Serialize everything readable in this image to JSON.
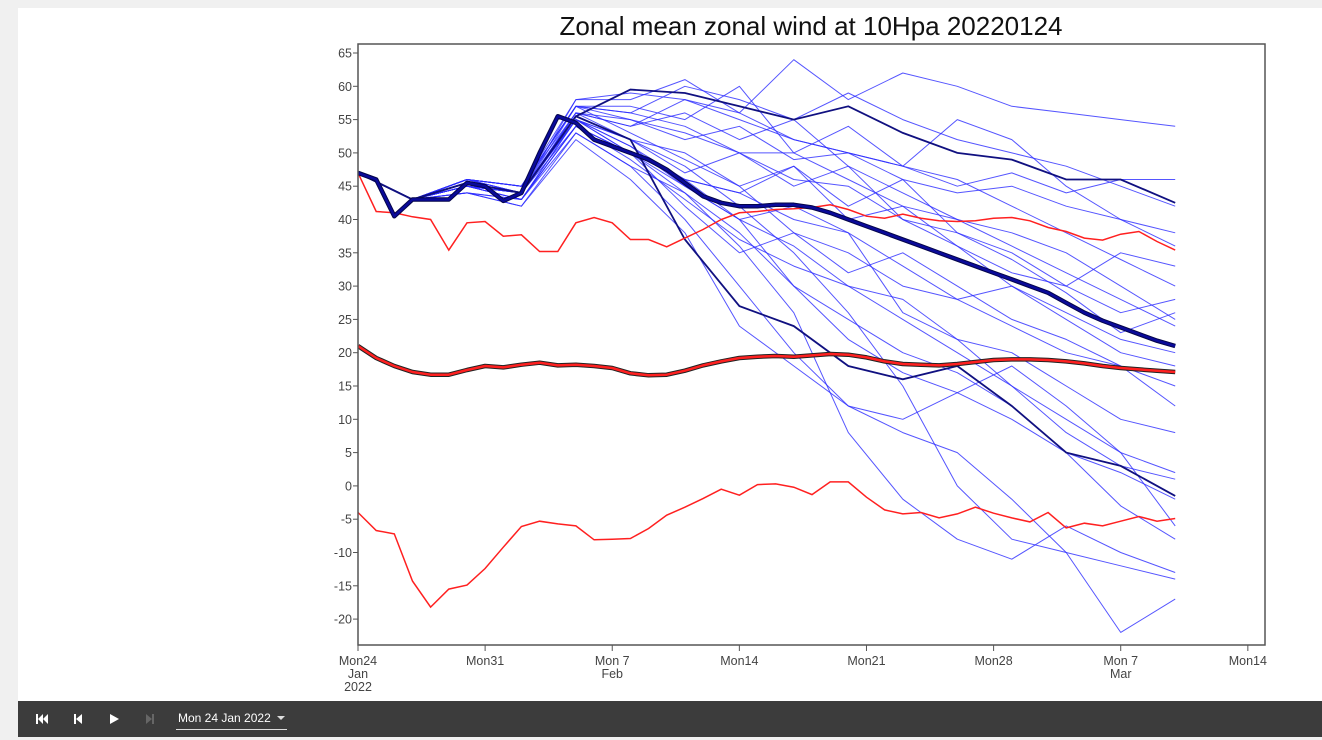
{
  "toolbar": {
    "buttons": [
      {
        "name": "first-frame",
        "icon": "skip-to-start-icon",
        "enabled": true
      },
      {
        "name": "previous-frame",
        "icon": "step-back-icon",
        "enabled": true
      },
      {
        "name": "play",
        "icon": "play-icon",
        "enabled": true
      },
      {
        "name": "next-frame",
        "icon": "step-forward-icon",
        "enabled": false
      }
    ],
    "date_value": "Mon 24 Jan 2022"
  },
  "chart_data": {
    "type": "line",
    "title": "Zonal mean zonal wind at 10Hpa 20220124",
    "xlabel": "",
    "ylabel": "",
    "x_unit": "days since Mon 24 Jan 2022",
    "xlim": [
      0,
      50
    ],
    "ylim": [
      -24,
      66.3
    ],
    "y_ticks": [
      65,
      60,
      55,
      50,
      45,
      40,
      35,
      30,
      25,
      20,
      15,
      10,
      5,
      0,
      -5,
      -10,
      -15,
      -20
    ],
    "x_ticks": [
      {
        "day": 0,
        "lines": [
          "Mon24",
          "Jan",
          "2022"
        ]
      },
      {
        "day": 7,
        "lines": [
          "Mon31"
        ]
      },
      {
        "day": 14,
        "lines": [
          "Mon 7",
          "Feb"
        ]
      },
      {
        "day": 21,
        "lines": [
          "Mon14"
        ]
      },
      {
        "day": 28,
        "lines": [
          "Mon21"
        ]
      },
      {
        "day": 35,
        "lines": [
          "Mon28"
        ]
      },
      {
        "day": 42,
        "lines": [
          "Mon 7",
          "Mar"
        ]
      },
      {
        "day": 49,
        "lines": [
          "Mon14"
        ]
      }
    ],
    "colors": {
      "member": "#2a2aff",
      "ens_mean": "#0a0a9a",
      "control": "#101080",
      "clim": "#ff2020",
      "clim_mean_edge": "#222222"
    },
    "climatology": {
      "days": "0..45 daily",
      "max": [
        47,
        41.2,
        41,
        40.4,
        40,
        35.4,
        39.5,
        39.7,
        37.5,
        37.7,
        35.2,
        35.2,
        39.5,
        40.3,
        39.5,
        37,
        37,
        35.9,
        37.2,
        38.5,
        40,
        41,
        41.2,
        41.5,
        41.6,
        41.8,
        42.2,
        41.5,
        40.5,
        40.2,
        40.8,
        40.2,
        39.8,
        39.7,
        39.8,
        40.2,
        40.3,
        39.8,
        38.8,
        38.2,
        37.2,
        36.9,
        37.8,
        38.2,
        36.7,
        35.4
      ],
      "mean": [
        21,
        19.2,
        18,
        17.1,
        16.7,
        16.7,
        17.4,
        18,
        17.8,
        18.2,
        18.5,
        18.1,
        18.2,
        18,
        17.7,
        16.9,
        16.6,
        16.7,
        17.3,
        18.1,
        18.7,
        19.2,
        19.4,
        19.5,
        19.4,
        19.6,
        19.8,
        19.7,
        19.3,
        18.7,
        18.3,
        18.2,
        18.1,
        18.3,
        18.6,
        18.9,
        19,
        19,
        18.9,
        18.7,
        18.4,
        18,
        17.7,
        17.5,
        17.3,
        17.1
      ],
      "min": [
        -4,
        -6.7,
        -7.2,
        -14.3,
        -18.2,
        -15.5,
        -14.9,
        -12.4,
        -9.2,
        -6.1,
        -5.3,
        -5.7,
        -6,
        -8.1,
        -8,
        -7.9,
        -6.4,
        -4.4,
        -3.2,
        -1.9,
        -0.5,
        -1.4,
        0.2,
        0.3,
        -0.2,
        -1.3,
        0.6,
        0.6,
        -1.7,
        -3.6,
        -4.2,
        -4,
        -4.8,
        -4.2,
        -3.2,
        -4.1,
        -4.8,
        -5.4,
        -4,
        -6.3,
        -5.6,
        -6,
        -5.3,
        -4.6,
        -5.3,
        -4.9
      ]
    },
    "ensemble_mean": [
      47,
      46,
      40.5,
      43,
      43,
      43,
      45.5,
      45,
      42.8,
      44,
      50,
      55.5,
      54.5,
      52,
      51,
      50,
      49,
      47.5,
      45.5,
      43.5,
      42.5,
      42,
      42,
      42.2,
      42.2,
      41.8,
      41,
      40,
      39,
      38,
      37,
      36,
      35,
      34,
      33,
      32,
      31,
      30,
      29,
      27.5,
      26,
      24.8,
      23.8,
      22.8,
      21.8,
      21
    ],
    "member_days": [
      0,
      3,
      6,
      9,
      12,
      15,
      18,
      21,
      24,
      27,
      30,
      33,
      36,
      39,
      42,
      45
    ],
    "control_runs": [
      [
        47,
        43,
        45.5,
        44,
        55.5,
        59.5,
        59,
        57,
        55,
        57,
        53,
        50,
        49,
        46,
        46,
        42.5
      ],
      [
        47,
        43,
        45.5,
        44,
        55.5,
        52,
        37,
        27,
        24,
        18,
        16,
        18,
        12,
        5,
        3,
        -1.5
      ]
    ],
    "members": [
      [
        47,
        43,
        46,
        45,
        57,
        56,
        60,
        58,
        55,
        59,
        55,
        52,
        50,
        48,
        45,
        42
      ],
      [
        47,
        43,
        46,
        44,
        58,
        58,
        61,
        56,
        64,
        58,
        62,
        60,
        57,
        56,
        55,
        54
      ],
      [
        47,
        43,
        45,
        44,
        54,
        50,
        44,
        38,
        30,
        25,
        20,
        17,
        12,
        5,
        2,
        -2
      ],
      [
        47,
        43,
        44,
        43,
        53,
        48,
        40,
        30,
        20,
        12,
        8,
        5,
        -2,
        -10,
        -22,
        -17
      ],
      [
        47,
        43,
        46,
        45,
        57,
        55,
        52,
        54,
        49,
        50,
        46,
        44,
        45,
        42,
        40,
        38
      ],
      [
        47,
        43,
        45,
        43,
        55,
        50,
        46,
        44,
        40,
        38,
        26,
        22,
        15,
        8,
        3,
        1
      ],
      [
        47,
        43,
        45,
        44,
        56,
        52,
        50,
        45,
        48,
        42,
        46,
        38,
        35,
        30,
        26,
        28
      ],
      [
        47,
        43,
        46,
        44,
        57,
        56,
        54,
        50,
        46,
        45,
        40,
        36,
        32,
        30,
        35,
        33
      ],
      [
        47,
        43,
        44,
        42,
        52,
        46,
        38,
        24,
        18,
        12,
        10,
        14,
        18,
        12,
        5,
        -6
      ],
      [
        47,
        43,
        46,
        45,
        58,
        59,
        58,
        55,
        52,
        50,
        48,
        45,
        47,
        44,
        46,
        46
      ],
      [
        47,
        43,
        45,
        44,
        55,
        52,
        48,
        42,
        35,
        26,
        15,
        0,
        -8,
        -10,
        -12,
        -14
      ],
      [
        47,
        43,
        45,
        43,
        54,
        50,
        46,
        40,
        36,
        30,
        28,
        22,
        20,
        15,
        10,
        8
      ],
      [
        47,
        43,
        46,
        45,
        56,
        54,
        56,
        52,
        55,
        48,
        44,
        40,
        38,
        35,
        30,
        25
      ],
      [
        47,
        43,
        45,
        44,
        55,
        50,
        42,
        35,
        38,
        32,
        35,
        30,
        25,
        22,
        18,
        15
      ],
      [
        47,
        43,
        44,
        42,
        53,
        48,
        44,
        36,
        26,
        8,
        -2,
        -8,
        -11,
        -6,
        -10,
        -13
      ],
      [
        47,
        43,
        46,
        44,
        56,
        55,
        53,
        50,
        50,
        46,
        42,
        40,
        36,
        32,
        28,
        24
      ],
      [
        47,
        43,
        45,
        43,
        55,
        51,
        45,
        40,
        42,
        38,
        33,
        28,
        24,
        20,
        18,
        12
      ],
      [
        47,
        43,
        45,
        44,
        56,
        54,
        58,
        56,
        52,
        50,
        48,
        55,
        52,
        45,
        40,
        36
      ],
      [
        47,
        43,
        46,
        45,
        57,
        53,
        49,
        45,
        38,
        35,
        30,
        28,
        30,
        25,
        20,
        18
      ],
      [
        47,
        43,
        45,
        44,
        55,
        52,
        47,
        50,
        45,
        48,
        40,
        38,
        34,
        29,
        23,
        26
      ],
      [
        47,
        43,
        44,
        43,
        54,
        49,
        43,
        37,
        33,
        30,
        25,
        20,
        15,
        10,
        5,
        2
      ],
      [
        47,
        43,
        46,
        45,
        57,
        57,
        55,
        60,
        50,
        54,
        48,
        46,
        42,
        38,
        34,
        30
      ],
      [
        47,
        43,
        45,
        44,
        55,
        51,
        46,
        44,
        48,
        40,
        42,
        36,
        30,
        26,
        22,
        20
      ],
      [
        47,
        43,
        45,
        43,
        54,
        50,
        45,
        40,
        30,
        22,
        17,
        14,
        10,
        5,
        -3,
        -8
      ]
    ]
  }
}
